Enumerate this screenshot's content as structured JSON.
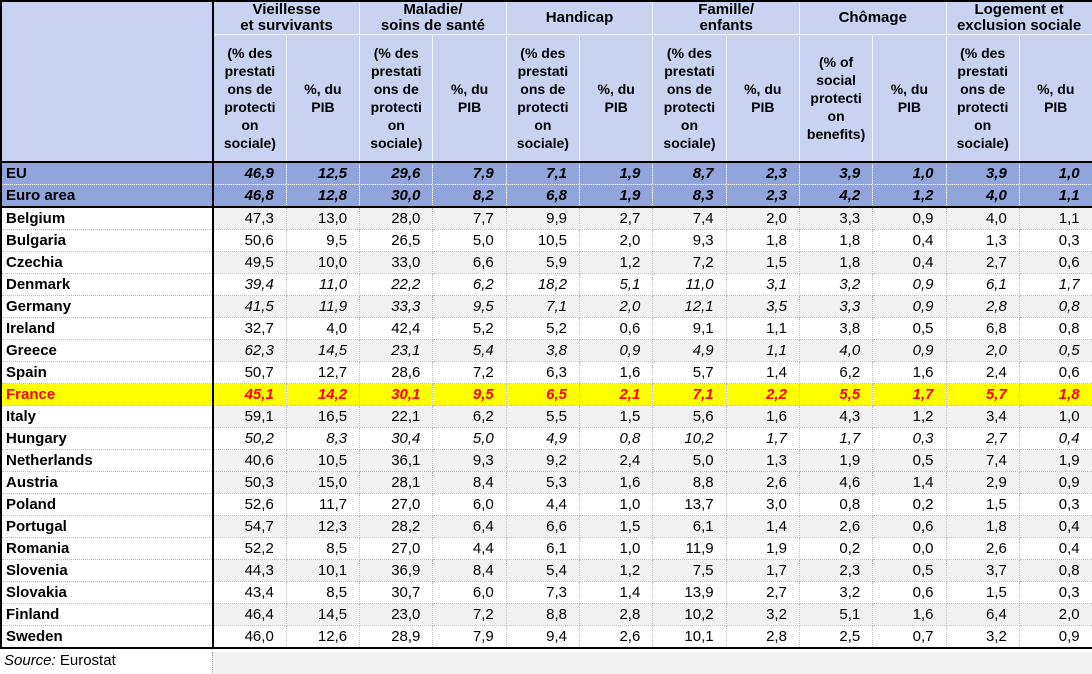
{
  "colors": {
    "header_bg": "#c9d2f0",
    "aggregate_row_bg": "#92a4dc",
    "stripe_bg": "#f2f2f2",
    "highlight_row_bg": "#ffff00",
    "highlight_row_text": "#ff0000"
  },
  "table": {
    "categories": [
      {
        "label": "Vieillesse\net survivants",
        "sub1": "(% des\nprestati\nons de\nprotecti\non\nsociale)",
        "sub2": "%, du\nPIB"
      },
      {
        "label": "Maladie/\nsoins de santé",
        "sub1": "(% des\nprestati\nons de\nprotecti\non\nsociale)",
        "sub2": "%, du\nPIB"
      },
      {
        "label": "Handicap",
        "sub1": "(% des\nprestati\nons de\nprotecti\non\nsociale)",
        "sub2": "%, du\nPIB"
      },
      {
        "label": "Famille/\nenfants",
        "sub1": "(% des\nprestati\nons de\nprotecti\non\nsociale)",
        "sub2": "%, du\nPIB"
      },
      {
        "label": "Chômage",
        "sub1": "(% of\nsocial\nprotecti\non\nbenefits)",
        "sub2": "%, du\nPIB"
      },
      {
        "label": "Logement et\nexclusion sociale",
        "sub1": "(% des\nprestati\nons de\nprotecti\non\nsociale)",
        "sub2": "%, du\nPIB"
      }
    ],
    "rows": [
      {
        "name": "EU",
        "variant": "eu",
        "values": [
          "46,9",
          "12,5",
          "29,6",
          "7,9",
          "7,1",
          "1,9",
          "8,7",
          "2,3",
          "3,9",
          "1,0",
          "3,9",
          "1,0"
        ]
      },
      {
        "name": "Euro area",
        "variant": "eu",
        "values": [
          "46,8",
          "12,8",
          "30,0",
          "8,2",
          "6,8",
          "1,9",
          "8,3",
          "2,3",
          "4,2",
          "1,2",
          "4,0",
          "1,1"
        ]
      },
      {
        "name": "Belgium",
        "variant": "stripe",
        "values": [
          "47,3",
          "13,0",
          "28,0",
          "7,7",
          "9,9",
          "2,7",
          "7,4",
          "2,0",
          "3,3",
          "0,9",
          "4,0",
          "1,1"
        ]
      },
      {
        "name": "Bulgaria",
        "variant": "plain",
        "values": [
          "50,6",
          "9,5",
          "26,5",
          "5,0",
          "10,5",
          "2,0",
          "9,3",
          "1,8",
          "1,8",
          "0,4",
          "1,3",
          "0,3"
        ]
      },
      {
        "name": "Czechia",
        "variant": "stripe",
        "values": [
          "49,5",
          "10,0",
          "33,0",
          "6,6",
          "5,9",
          "1,2",
          "7,2",
          "1,5",
          "1,8",
          "0,4",
          "2,7",
          "0,6"
        ]
      },
      {
        "name": "Denmark",
        "variant": "plain italic",
        "values": [
          "39,4",
          "11,0",
          "22,2",
          "6,2",
          "18,2",
          "5,1",
          "11,0",
          "3,1",
          "3,2",
          "0,9",
          "6,1",
          "1,7"
        ]
      },
      {
        "name": "Germany",
        "variant": "stripe italic",
        "values": [
          "41,5",
          "11,9",
          "33,3",
          "9,5",
          "7,1",
          "2,0",
          "12,1",
          "3,5",
          "3,3",
          "0,9",
          "2,8",
          "0,8"
        ]
      },
      {
        "name": "Ireland",
        "variant": "plain",
        "values": [
          "32,7",
          "4,0",
          "42,4",
          "5,2",
          "5,2",
          "0,6",
          "9,1",
          "1,1",
          "3,8",
          "0,5",
          "6,8",
          "0,8"
        ]
      },
      {
        "name": "Greece",
        "variant": "stripe italic",
        "values": [
          "62,3",
          "14,5",
          "23,1",
          "5,4",
          "3,8",
          "0,9",
          "4,9",
          "1,1",
          "4,0",
          "0,9",
          "2,0",
          "0,5"
        ]
      },
      {
        "name": "Spain",
        "variant": "plain",
        "values": [
          "50,7",
          "12,7",
          "28,6",
          "7,2",
          "6,3",
          "1,6",
          "5,7",
          "1,4",
          "6,2",
          "1,6",
          "2,4",
          "0,6"
        ]
      },
      {
        "name": "France",
        "variant": "france",
        "values": [
          "45,1",
          "14,2",
          "30,1",
          "9,5",
          "6,5",
          "2,1",
          "7,1",
          "2,2",
          "5,5",
          "1,7",
          "5,7",
          "1,8"
        ]
      },
      {
        "name": "Italy",
        "variant": "stripe",
        "values": [
          "59,1",
          "16,5",
          "22,1",
          "6,2",
          "5,5",
          "1,5",
          "5,6",
          "1,6",
          "4,3",
          "1,2",
          "3,4",
          "1,0"
        ]
      },
      {
        "name": "Hungary",
        "variant": "plain italic",
        "values": [
          "50,2",
          "8,3",
          "30,4",
          "5,0",
          "4,9",
          "0,8",
          "10,2",
          "1,7",
          "1,7",
          "0,3",
          "2,7",
          "0,4"
        ]
      },
      {
        "name": "Netherlands",
        "variant": "stripe",
        "values": [
          "40,6",
          "10,5",
          "36,1",
          "9,3",
          "9,2",
          "2,4",
          "5,0",
          "1,3",
          "1,9",
          "0,5",
          "7,4",
          "1,9"
        ]
      },
      {
        "name": "Austria",
        "variant": "stripe",
        "values": [
          "50,3",
          "15,0",
          "28,1",
          "8,4",
          "5,3",
          "1,6",
          "8,8",
          "2,6",
          "4,6",
          "1,4",
          "2,9",
          "0,9"
        ]
      },
      {
        "name": "Poland",
        "variant": "plain",
        "values": [
          "52,6",
          "11,7",
          "27,0",
          "6,0",
          "4,4",
          "1,0",
          "13,7",
          "3,0",
          "0,8",
          "0,2",
          "1,5",
          "0,3"
        ]
      },
      {
        "name": "Portugal",
        "variant": "stripe",
        "values": [
          "54,7",
          "12,3",
          "28,2",
          "6,4",
          "6,6",
          "1,5",
          "6,1",
          "1,4",
          "2,6",
          "0,6",
          "1,8",
          "0,4"
        ]
      },
      {
        "name": "Romania",
        "variant": "plain",
        "values": [
          "52,2",
          "8,5",
          "27,0",
          "4,4",
          "6,1",
          "1,0",
          "11,9",
          "1,9",
          "0,2",
          "0,0",
          "2,6",
          "0,4"
        ]
      },
      {
        "name": "Slovenia",
        "variant": "stripe",
        "values": [
          "44,3",
          "10,1",
          "36,9",
          "8,4",
          "5,4",
          "1,2",
          "7,5",
          "1,7",
          "2,3",
          "0,5",
          "3,7",
          "0,8"
        ]
      },
      {
        "name": "Slovakia",
        "variant": "plain",
        "values": [
          "43,4",
          "8,5",
          "30,7",
          "6,0",
          "7,3",
          "1,4",
          "13,9",
          "2,7",
          "3,2",
          "0,6",
          "1,5",
          "0,3"
        ]
      },
      {
        "name": "Finland",
        "variant": "stripe",
        "values": [
          "46,4",
          "14,5",
          "23,0",
          "7,2",
          "8,8",
          "2,8",
          "10,2",
          "3,2",
          "5,1",
          "1,6",
          "6,4",
          "2,0"
        ]
      },
      {
        "name": "Sweden",
        "variant": "plain",
        "values": [
          "46,0",
          "12,6",
          "28,9",
          "7,9",
          "9,4",
          "2,6",
          "10,1",
          "2,8",
          "2,5",
          "0,7",
          "3,2",
          "0,9"
        ]
      }
    ]
  },
  "source": {
    "label": "Source:",
    "value": "Eurostat"
  }
}
